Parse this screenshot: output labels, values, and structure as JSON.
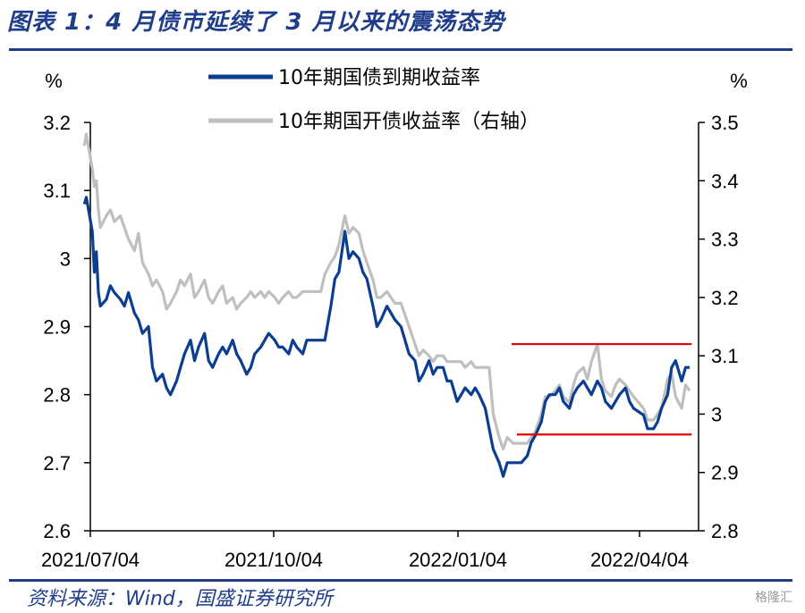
{
  "header": {
    "title": "图表 1：4 月债市延续了 3 月以来的震荡态势"
  },
  "footer": {
    "source": "资料来源：Wind，国盛证券研究所",
    "watermark": "格隆汇"
  },
  "colors": {
    "treasury": "#0b3d91",
    "cdb": "#bfbfbf",
    "band": "#e00000",
    "header": "#1f3d8a"
  },
  "chart_data": {
    "type": "line",
    "left_axis": {
      "unit": "%",
      "ylim": [
        2.6,
        3.2
      ],
      "ticks": [
        "3.2",
        "3.1",
        "3",
        "2.9",
        "2.8",
        "2.7",
        "2.6"
      ]
    },
    "right_axis": {
      "unit": "%",
      "ylim": [
        2.8,
        3.5
      ],
      "ticks": [
        "3.5",
        "3.4",
        "3.3",
        "3.2",
        "3.1",
        "3",
        "2.9",
        "2.8"
      ]
    },
    "x_axis": {
      "labels": [
        "2021/07/04",
        "2021/10/04",
        "2022/01/04",
        "2022/04/04"
      ],
      "range": [
        "2021-07-04",
        "2022-04-30"
      ]
    },
    "legend": {
      "placement": "top-center"
    },
    "grid": false,
    "series": [
      {
        "name": "10年期国债到期收益率",
        "axis": "left",
        "points": [
          [
            "2021-07-01",
            3.08
          ],
          [
            "2021-07-02",
            3.09
          ],
          [
            "2021-07-05",
            3.04
          ],
          [
            "2021-07-06",
            2.98
          ],
          [
            "2021-07-07",
            3.01
          ],
          [
            "2021-07-08",
            2.95
          ],
          [
            "2021-07-09",
            2.93
          ],
          [
            "2021-07-12",
            2.94
          ],
          [
            "2021-07-14",
            2.96
          ],
          [
            "2021-07-16",
            2.95
          ],
          [
            "2021-07-19",
            2.94
          ],
          [
            "2021-07-21",
            2.93
          ],
          [
            "2021-07-23",
            2.95
          ],
          [
            "2021-07-26",
            2.92
          ],
          [
            "2021-07-28",
            2.91
          ],
          [
            "2021-07-30",
            2.89
          ],
          [
            "2021-08-02",
            2.9
          ],
          [
            "2021-08-04",
            2.84
          ],
          [
            "2021-08-06",
            2.82
          ],
          [
            "2021-08-09",
            2.83
          ],
          [
            "2021-08-11",
            2.81
          ],
          [
            "2021-08-13",
            2.8
          ],
          [
            "2021-08-16",
            2.82
          ],
          [
            "2021-08-18",
            2.84
          ],
          [
            "2021-08-20",
            2.86
          ],
          [
            "2021-08-23",
            2.88
          ],
          [
            "2021-08-25",
            2.85
          ],
          [
            "2021-08-27",
            2.87
          ],
          [
            "2021-08-30",
            2.89
          ],
          [
            "2021-09-01",
            2.85
          ],
          [
            "2021-09-03",
            2.84
          ],
          [
            "2021-09-06",
            2.86
          ],
          [
            "2021-09-08",
            2.87
          ],
          [
            "2021-09-10",
            2.86
          ],
          [
            "2021-09-13",
            2.88
          ],
          [
            "2021-09-15",
            2.86
          ],
          [
            "2021-09-17",
            2.85
          ],
          [
            "2021-09-20",
            2.83
          ],
          [
            "2021-09-22",
            2.84
          ],
          [
            "2021-09-24",
            2.86
          ],
          [
            "2021-09-27",
            2.87
          ],
          [
            "2021-09-29",
            2.88
          ],
          [
            "2021-10-01",
            2.89
          ],
          [
            "2021-10-04",
            2.88
          ],
          [
            "2021-10-06",
            2.87
          ],
          [
            "2021-10-08",
            2.87
          ],
          [
            "2021-10-11",
            2.86
          ],
          [
            "2021-10-13",
            2.88
          ],
          [
            "2021-10-15",
            2.87
          ],
          [
            "2021-10-18",
            2.86
          ],
          [
            "2021-10-20",
            2.88
          ],
          [
            "2021-10-22",
            2.88
          ],
          [
            "2021-10-25",
            2.88
          ],
          [
            "2021-10-27",
            2.88
          ],
          [
            "2021-10-29",
            2.88
          ],
          [
            "2021-11-01",
            2.93
          ],
          [
            "2021-11-03",
            2.97
          ],
          [
            "2021-11-05",
            2.98
          ],
          [
            "2021-11-08",
            3.04
          ],
          [
            "2021-11-10",
            3.0
          ],
          [
            "2021-11-12",
            3.01
          ],
          [
            "2021-11-15",
            3.0
          ],
          [
            "2021-11-17",
            2.98
          ],
          [
            "2021-11-19",
            2.97
          ],
          [
            "2021-11-22",
            2.93
          ],
          [
            "2021-11-24",
            2.9
          ],
          [
            "2021-11-26",
            2.91
          ],
          [
            "2021-11-29",
            2.93
          ],
          [
            "2021-12-01",
            2.92
          ],
          [
            "2021-12-03",
            2.91
          ],
          [
            "2021-12-06",
            2.9
          ],
          [
            "2021-12-08",
            2.88
          ],
          [
            "2021-12-10",
            2.86
          ],
          [
            "2021-12-13",
            2.85
          ],
          [
            "2021-12-15",
            2.82
          ],
          [
            "2021-12-17",
            2.83
          ],
          [
            "2021-12-20",
            2.85
          ],
          [
            "2021-12-22",
            2.83
          ],
          [
            "2021-12-24",
            2.84
          ],
          [
            "2021-12-27",
            2.84
          ],
          [
            "2021-12-29",
            2.82
          ],
          [
            "2021-12-31",
            2.82
          ],
          [
            "2022-01-03",
            2.79
          ],
          [
            "2022-01-05",
            2.8
          ],
          [
            "2022-01-07",
            2.81
          ],
          [
            "2022-01-10",
            2.8
          ],
          [
            "2022-01-12",
            2.81
          ],
          [
            "2022-01-14",
            2.8
          ],
          [
            "2022-01-17",
            2.78
          ],
          [
            "2022-01-19",
            2.75
          ],
          [
            "2022-01-21",
            2.72
          ],
          [
            "2022-01-24",
            2.7
          ],
          [
            "2022-01-26",
            2.68
          ],
          [
            "2022-01-28",
            2.7
          ],
          [
            "2022-01-31",
            2.7
          ],
          [
            "2022-02-04",
            2.7
          ],
          [
            "2022-02-07",
            2.71
          ],
          [
            "2022-02-09",
            2.73
          ],
          [
            "2022-02-11",
            2.74
          ],
          [
            "2022-02-14",
            2.76
          ],
          [
            "2022-02-16",
            2.79
          ],
          [
            "2022-02-18",
            2.8
          ],
          [
            "2022-02-21",
            2.8
          ],
          [
            "2022-02-23",
            2.81
          ],
          [
            "2022-02-25",
            2.79
          ],
          [
            "2022-02-28",
            2.78
          ],
          [
            "2022-03-02",
            2.8
          ],
          [
            "2022-03-04",
            2.81
          ],
          [
            "2022-03-07",
            2.82
          ],
          [
            "2022-03-09",
            2.81
          ],
          [
            "2022-03-11",
            2.8
          ],
          [
            "2022-03-14",
            2.82
          ],
          [
            "2022-03-16",
            2.81
          ],
          [
            "2022-03-18",
            2.79
          ],
          [
            "2022-03-21",
            2.78
          ],
          [
            "2022-03-23",
            2.79
          ],
          [
            "2022-03-25",
            2.8
          ],
          [
            "2022-03-28",
            2.81
          ],
          [
            "2022-03-30",
            2.79
          ],
          [
            "2022-04-01",
            2.78
          ],
          [
            "2022-04-06",
            2.77
          ],
          [
            "2022-04-08",
            2.75
          ],
          [
            "2022-04-11",
            2.75
          ],
          [
            "2022-04-13",
            2.76
          ],
          [
            "2022-04-15",
            2.78
          ],
          [
            "2022-04-18",
            2.8
          ],
          [
            "2022-04-20",
            2.84
          ],
          [
            "2022-04-22",
            2.85
          ],
          [
            "2022-04-25",
            2.82
          ],
          [
            "2022-04-27",
            2.84
          ],
          [
            "2022-04-29",
            2.84
          ]
        ]
      },
      {
        "name": "10年期国开债收益率（右轴）",
        "axis": "right",
        "points": [
          [
            "2021-07-01",
            3.46
          ],
          [
            "2021-07-02",
            3.48
          ],
          [
            "2021-07-05",
            3.42
          ],
          [
            "2021-07-06",
            3.39
          ],
          [
            "2021-07-07",
            3.4
          ],
          [
            "2021-07-08",
            3.35
          ],
          [
            "2021-07-09",
            3.32
          ],
          [
            "2021-07-12",
            3.34
          ],
          [
            "2021-07-14",
            3.35
          ],
          [
            "2021-07-16",
            3.33
          ],
          [
            "2021-07-19",
            3.34
          ],
          [
            "2021-07-21",
            3.32
          ],
          [
            "2021-07-23",
            3.3
          ],
          [
            "2021-07-26",
            3.28
          ],
          [
            "2021-07-28",
            3.31
          ],
          [
            "2021-07-30",
            3.26
          ],
          [
            "2021-08-02",
            3.24
          ],
          [
            "2021-08-04",
            3.22
          ],
          [
            "2021-08-06",
            3.23
          ],
          [
            "2021-08-09",
            3.21
          ],
          [
            "2021-08-11",
            3.18
          ],
          [
            "2021-08-13",
            3.19
          ],
          [
            "2021-08-16",
            3.21
          ],
          [
            "2021-08-18",
            3.23
          ],
          [
            "2021-08-20",
            3.22
          ],
          [
            "2021-08-23",
            3.24
          ],
          [
            "2021-08-25",
            3.2
          ],
          [
            "2021-08-27",
            3.21
          ],
          [
            "2021-08-30",
            3.23
          ],
          [
            "2021-09-01",
            3.2
          ],
          [
            "2021-09-03",
            3.19
          ],
          [
            "2021-09-06",
            3.21
          ],
          [
            "2021-09-08",
            3.22
          ],
          [
            "2021-09-10",
            3.19
          ],
          [
            "2021-09-13",
            3.2
          ],
          [
            "2021-09-15",
            3.18
          ],
          [
            "2021-09-17",
            3.19
          ],
          [
            "2021-09-20",
            3.2
          ],
          [
            "2021-09-22",
            3.21
          ],
          [
            "2021-09-24",
            3.2
          ],
          [
            "2021-09-27",
            3.21
          ],
          [
            "2021-09-29",
            3.2
          ],
          [
            "2021-10-01",
            3.21
          ],
          [
            "2021-10-04",
            3.2
          ],
          [
            "2021-10-06",
            3.19
          ],
          [
            "2021-10-08",
            3.2
          ],
          [
            "2021-10-11",
            3.21
          ],
          [
            "2021-10-13",
            3.2
          ],
          [
            "2021-10-15",
            3.2
          ],
          [
            "2021-10-18",
            3.21
          ],
          [
            "2021-10-20",
            3.21
          ],
          [
            "2021-10-22",
            3.21
          ],
          [
            "2021-10-25",
            3.21
          ],
          [
            "2021-10-27",
            3.21
          ],
          [
            "2021-10-29",
            3.24
          ],
          [
            "2021-11-01",
            3.26
          ],
          [
            "2021-11-03",
            3.27
          ],
          [
            "2021-11-05",
            3.29
          ],
          [
            "2021-11-08",
            3.34
          ],
          [
            "2021-11-10",
            3.31
          ],
          [
            "2021-11-12",
            3.32
          ],
          [
            "2021-11-15",
            3.31
          ],
          [
            "2021-11-17",
            3.28
          ],
          [
            "2021-11-19",
            3.26
          ],
          [
            "2021-11-22",
            3.23
          ],
          [
            "2021-11-24",
            3.2
          ],
          [
            "2021-11-26",
            3.2
          ],
          [
            "2021-11-29",
            3.21
          ],
          [
            "2021-12-01",
            3.2
          ],
          [
            "2021-12-03",
            3.19
          ],
          [
            "2021-12-06",
            3.19
          ],
          [
            "2021-12-08",
            3.17
          ],
          [
            "2021-12-10",
            3.15
          ],
          [
            "2021-12-13",
            3.12
          ],
          [
            "2021-12-15",
            3.1
          ],
          [
            "2021-12-17",
            3.11
          ],
          [
            "2021-12-20",
            3.1
          ],
          [
            "2021-12-22",
            3.09
          ],
          [
            "2021-12-24",
            3.1
          ],
          [
            "2021-12-27",
            3.1
          ],
          [
            "2021-12-29",
            3.09
          ],
          [
            "2021-12-31",
            3.09
          ],
          [
            "2022-01-03",
            3.09
          ],
          [
            "2022-01-05",
            3.09
          ],
          [
            "2022-01-07",
            3.08
          ],
          [
            "2022-01-10",
            3.09
          ],
          [
            "2022-01-12",
            3.08
          ],
          [
            "2022-01-14",
            3.08
          ],
          [
            "2022-01-17",
            3.08
          ],
          [
            "2022-01-19",
            3.08
          ],
          [
            "2022-01-21",
            3.0
          ],
          [
            "2022-01-24",
            2.96
          ],
          [
            "2022-01-26",
            2.94
          ],
          [
            "2022-01-28",
            2.96
          ],
          [
            "2022-01-31",
            2.95
          ],
          [
            "2022-02-04",
            2.95
          ],
          [
            "2022-02-07",
            2.95
          ],
          [
            "2022-02-09",
            2.96
          ],
          [
            "2022-02-11",
            2.97
          ],
          [
            "2022-02-14",
            3.0
          ],
          [
            "2022-02-16",
            3.03
          ],
          [
            "2022-02-18",
            3.03
          ],
          [
            "2022-02-21",
            3.04
          ],
          [
            "2022-02-23",
            3.05
          ],
          [
            "2022-02-25",
            3.03
          ],
          [
            "2022-02-28",
            3.02
          ],
          [
            "2022-03-02",
            3.05
          ],
          [
            "2022-03-04",
            3.07
          ],
          [
            "2022-03-07",
            3.08
          ],
          [
            "2022-03-09",
            3.06
          ],
          [
            "2022-03-11",
            3.09
          ],
          [
            "2022-03-14",
            3.12
          ],
          [
            "2022-03-16",
            3.06
          ],
          [
            "2022-03-18",
            3.04
          ],
          [
            "2022-03-21",
            3.03
          ],
          [
            "2022-03-23",
            3.05
          ],
          [
            "2022-03-25",
            3.06
          ],
          [
            "2022-03-28",
            3.05
          ],
          [
            "2022-03-30",
            3.04
          ],
          [
            "2022-04-01",
            3.03
          ],
          [
            "2022-04-06",
            3.01
          ],
          [
            "2022-04-08",
            2.99
          ],
          [
            "2022-04-11",
            2.99
          ],
          [
            "2022-04-13",
            3.0
          ],
          [
            "2022-04-15",
            3.01
          ],
          [
            "2022-04-18",
            3.06
          ],
          [
            "2022-04-20",
            3.07
          ],
          [
            "2022-04-22",
            3.03
          ],
          [
            "2022-04-25",
            3.01
          ],
          [
            "2022-04-27",
            3.05
          ],
          [
            "2022-04-29",
            3.04
          ]
        ]
      }
    ],
    "reference_lines": [
      {
        "axis": "right",
        "value": 3.12,
        "from": "2022-02-04",
        "to": "2022-04-30"
      },
      {
        "axis": "right",
        "value": 2.965,
        "from": "2022-02-04",
        "to": "2022-04-30"
      }
    ]
  }
}
